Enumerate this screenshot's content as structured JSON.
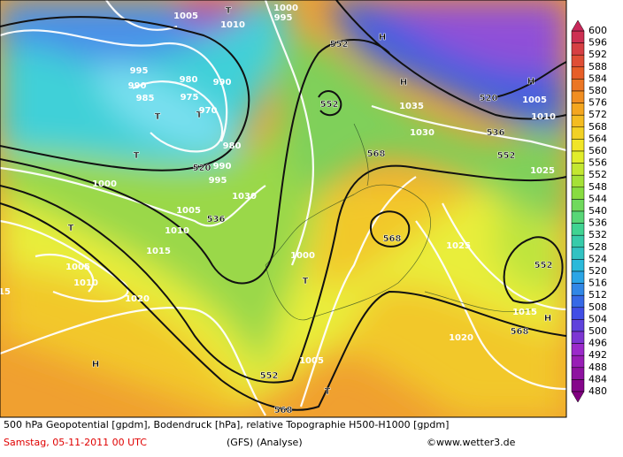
{
  "map": {
    "labels": [
      "552",
      "552",
      "552",
      "552",
      "552",
      "568",
      "568",
      "568",
      "568",
      "520",
      "520",
      "536",
      "536",
      "H",
      "H",
      "H",
      "H",
      "H",
      "T",
      "T",
      "T",
      "T",
      "T",
      "T",
      "T",
      "1035",
      "1030",
      "1025",
      "1020",
      "1015",
      "1015",
      "1020",
      "1005",
      "1010",
      "1005",
      "1010",
      "1000",
      "1000",
      "1005",
      "1030",
      "995",
      "990",
      "980",
      "985",
      "990",
      "995",
      "975",
      "980",
      "990",
      "970",
      "1005",
      "1010",
      "995",
      "1000",
      "1025",
      "1010",
      "1005",
      "15"
    ]
  },
  "colorbar": {
    "labels": [
      "600",
      "596",
      "592",
      "588",
      "584",
      "580",
      "576",
      "572",
      "568",
      "564",
      "560",
      "556",
      "552",
      "548",
      "544",
      "540",
      "536",
      "532",
      "528",
      "524",
      "520",
      "516",
      "512",
      "508",
      "504",
      "500",
      "496",
      "492",
      "488",
      "484",
      "480"
    ]
  },
  "caption": {
    "line1": "500 hPa Geopotential [gpdm], Bodendruck [hPa], relative Topographie H500-H1000 [gpdm]",
    "date": "Samstag, 05-11-2011  00 UTC",
    "model": "(GFS)  (Analyse)",
    "source": "©www.wetter3.de"
  }
}
